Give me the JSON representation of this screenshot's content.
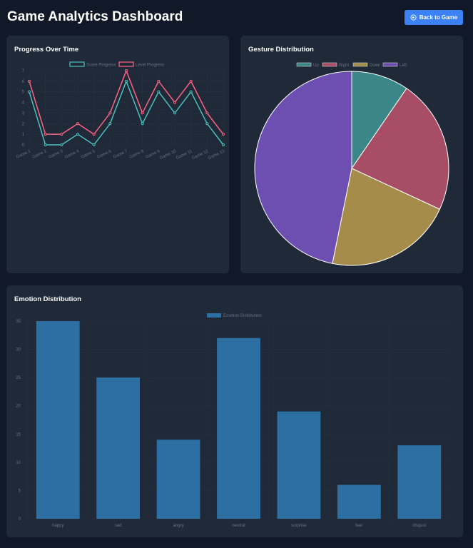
{
  "header": {
    "title": "Game Analytics Dashboard",
    "back_label": "Back to Game"
  },
  "colors": {
    "score": "#4bc0c0",
    "level": "#ff6384",
    "bar": "#2c6fa3",
    "up": "#3b8686",
    "right": "#a84d66",
    "down": "#a58c4a",
    "left": "#6c4fb0"
  },
  "chart_data": [
    {
      "type": "line",
      "title": "Progress Over Time",
      "x": [
        "Game 1",
        "Game 2",
        "Game 3",
        "Game 4",
        "Game 5",
        "Game 6",
        "Game 7",
        "Game 8",
        "Game 9",
        "Game 10",
        "Game 11",
        "Game 12",
        "Game 13"
      ],
      "series": [
        {
          "name": "Score Progress",
          "values": [
            5,
            0,
            0,
            1,
            0,
            2,
            6,
            2,
            5,
            3,
            5,
            2,
            0
          ]
        },
        {
          "name": "Level Progress",
          "values": [
            6,
            1,
            1,
            2,
            1,
            3,
            7,
            3,
            6,
            4,
            6,
            3,
            1
          ]
        }
      ],
      "ylim": [
        0,
        7
      ],
      "yticks": [
        "0",
        "1",
        "2",
        "3",
        "4",
        "5",
        "6",
        "7"
      ],
      "legend": "top",
      "grid": true
    },
    {
      "type": "pie",
      "title": "Gesture Distribution",
      "categories": [
        "Up",
        "Right",
        "Down",
        "Left"
      ],
      "values": [
        9,
        21,
        20,
        44
      ],
      "legend": "top"
    },
    {
      "type": "bar",
      "title": "Emotion Distribution",
      "series_name": "Emotion Distribution",
      "categories": [
        "happy",
        "sad",
        "angry",
        "neutral",
        "surprise",
        "fear",
        "disgust"
      ],
      "values": [
        35,
        25,
        14,
        32,
        19,
        6,
        13
      ],
      "ylim": [
        0,
        35
      ],
      "yticks": [
        "0",
        "5",
        "10",
        "15",
        "20",
        "25",
        "30",
        "35"
      ],
      "legend": "top",
      "grid": true
    }
  ]
}
